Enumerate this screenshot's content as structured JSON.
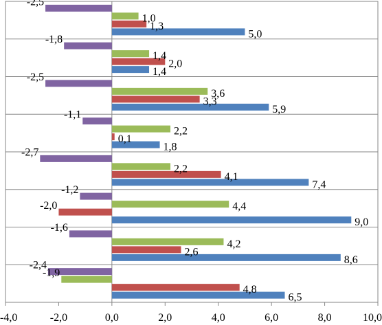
{
  "chart_data": {
    "type": "bar",
    "orientation": "horizontal",
    "groups": 8,
    "series": [
      {
        "color": "#4f81bd",
        "values": [
          5.0,
          1.4,
          5.9,
          1.8,
          7.4,
          9.0,
          8.6,
          6.5
        ]
      },
      {
        "color": "#c0504d",
        "values": [
          1.3,
          2.0,
          3.3,
          0.1,
          4.1,
          -2.0,
          2.6,
          4.8
        ]
      },
      {
        "color": "#9bbb59",
        "values": [
          1.0,
          1.4,
          3.6,
          2.2,
          2.2,
          4.4,
          4.2,
          -1.9
        ]
      },
      {
        "color": "#8064a2",
        "values": [
          -2.5,
          -1.8,
          -2.5,
          -1.1,
          -2.7,
          -1.2,
          -1.6,
          -2.4
        ]
      }
    ],
    "value_labels": [
      [
        "5,0",
        "1,3",
        "1,0",
        "-2,5"
      ],
      [
        "1,4",
        "2,0",
        "1,4",
        "-1,8"
      ],
      [
        "5,9",
        "3,3",
        "3,6",
        "-2,5"
      ],
      [
        "1,8",
        "0,1",
        "2,2",
        "-1,1"
      ],
      [
        "7,4",
        "4,1",
        "2,2",
        "-2,7"
      ],
      [
        "9,0",
        "-2,0",
        "4,4",
        "-1,2"
      ],
      [
        "8,6",
        "2,6",
        "4,2",
        "-1,6"
      ],
      [
        "6,5",
        "4,8",
        "-1,9",
        "-2,4"
      ]
    ],
    "xlim": [
      -4.0,
      10.0
    ],
    "x_ticks": [
      -4.0,
      -2.0,
      0.0,
      2.0,
      4.0,
      6.0,
      8.0,
      10.0
    ],
    "x_tick_labels": [
      "-4,0",
      "-2,0",
      "0,0",
      "2,0",
      "4,0",
      "6,0",
      "8,0",
      "10,0"
    ],
    "legend": "none",
    "grid": "horizontal separators between groups"
  }
}
